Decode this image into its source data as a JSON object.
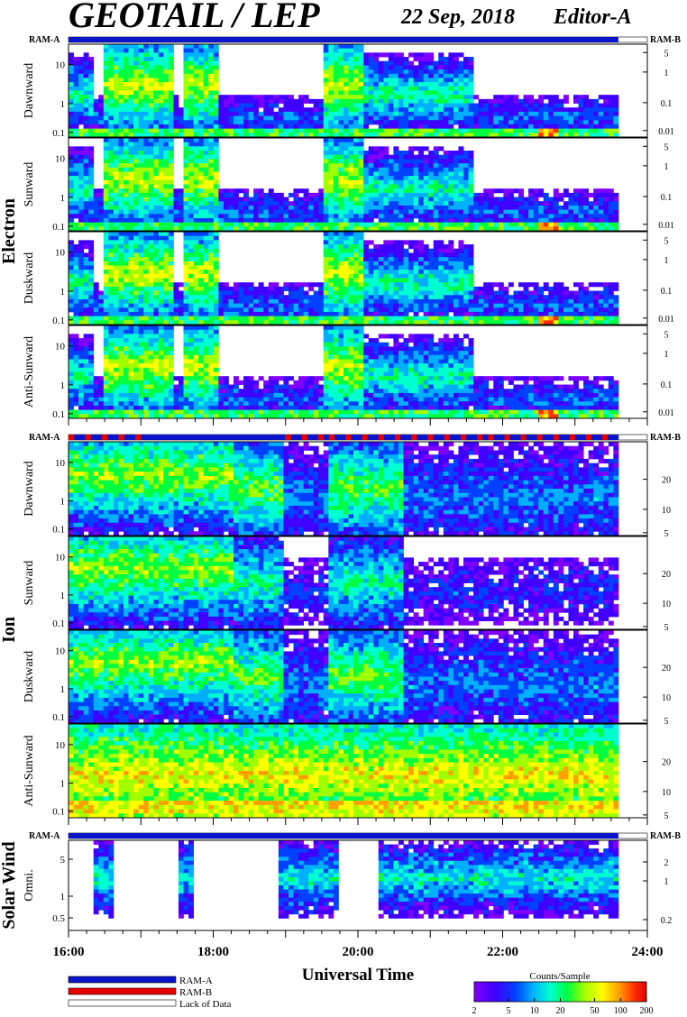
{
  "header": {
    "title": "GEOTAIL / LEP",
    "date": "22 Sep, 2018",
    "editor": "Editor-A"
  },
  "colors": {
    "ram_a": "#0a14c8",
    "ram_b": "#e80000",
    "lack": "#ffffff",
    "scale": [
      "#8000ff",
      "#4000ff",
      "#0040ff",
      "#00b0ff",
      "#00ffd0",
      "#00ff40",
      "#a0ff00",
      "#ffff00",
      "#ffa000",
      "#ff3000",
      "#e00000"
    ]
  },
  "chart_data": {
    "type": "heatmap",
    "time_axis": {
      "label": "Universal Time",
      "range": [
        16,
        24
      ],
      "ticks": [
        16,
        18,
        20,
        22,
        24
      ],
      "tick_labels": [
        "16:00",
        "18:00",
        "20:00",
        "22:00",
        "24:00"
      ],
      "data_end": 23.6
    },
    "ram_labels": {
      "left": "RAM-A",
      "right": "RAM-B"
    },
    "groups": [
      {
        "label": "Electron",
        "ram_segments": [
          {
            "from": 16.0,
            "to": 23.6,
            "mode": "A"
          }
        ],
        "panels": [
          {
            "label": "Dawnward",
            "left_ticks": [
              "10",
              "1",
              "0.1"
            ],
            "right_ticks": [
              "5",
              "1",
              "0.1",
              "0.01"
            ]
          },
          {
            "label": "Sunward",
            "left_ticks": [
              "10",
              "1",
              "0.1"
            ],
            "right_ticks": [
              "5",
              "1",
              "0.1",
              "0.01"
            ]
          },
          {
            "label": "Duskward",
            "left_ticks": [
              "10",
              "1",
              "0.1"
            ],
            "right_ticks": [
              "5",
              "1",
              "0.1",
              "0.01"
            ]
          },
          {
            "label": "Anti-Sunward",
            "left_ticks": [
              "10",
              "1",
              "0.1"
            ],
            "right_ticks": [
              "5",
              "1",
              "0.1",
              "0.01"
            ]
          }
        ]
      },
      {
        "label": "Ion",
        "ram_segments": [
          {
            "from": 16.0,
            "to": 17.0,
            "mode": "mixed"
          },
          {
            "from": 17.0,
            "to": 19.0,
            "mode": "A"
          },
          {
            "from": 19.0,
            "to": 19.6,
            "mode": "mixed"
          },
          {
            "from": 19.6,
            "to": 21.8,
            "mode": "mixed"
          },
          {
            "from": 21.8,
            "to": 23.6,
            "mode": "mixed"
          }
        ],
        "panels": [
          {
            "label": "Dawnward",
            "left_ticks": [
              "10",
              "1",
              "0.1"
            ],
            "right_ticks": [
              "20",
              "10",
              "5"
            ]
          },
          {
            "label": "Sunward",
            "left_ticks": [
              "10",
              "1",
              "0.1"
            ],
            "right_ticks": [
              "20",
              "10",
              "5"
            ]
          },
          {
            "label": "Duskward",
            "left_ticks": [
              "10",
              "1",
              "0.1"
            ],
            "right_ticks": [
              "20",
              "10",
              "5"
            ]
          },
          {
            "label": "Anti-Sunward",
            "left_ticks": [
              "10",
              "1",
              "0.1"
            ],
            "right_ticks": [
              "20",
              "10",
              "5"
            ]
          }
        ]
      },
      {
        "label": "Solar Wind",
        "ram_segments": [
          {
            "from": 16.0,
            "to": 23.6,
            "mode": "A"
          }
        ],
        "panels": [
          {
            "label": "Omni.",
            "left_ticks": [
              "5",
              "1",
              "0.5"
            ],
            "right_ticks": [
              "2",
              "1",
              "0.2"
            ]
          }
        ]
      }
    ],
    "legend": {
      "entries": [
        "RAM-A",
        "RAM-B",
        "Lack of Data"
      ]
    },
    "colorbar": {
      "title": "Counts/Sample",
      "ticks": [
        "2",
        "5",
        "10",
        "20",
        "50",
        "100",
        "200"
      ],
      "scale": "log"
    }
  }
}
